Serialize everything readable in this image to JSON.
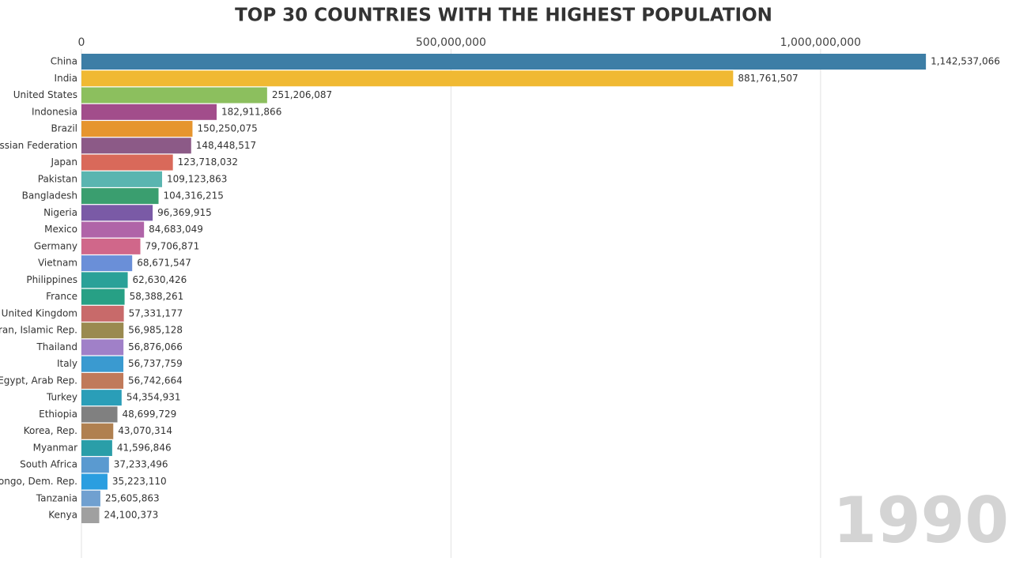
{
  "chart_data": {
    "type": "bar",
    "orientation": "horizontal",
    "title": "TOP 30 COUNTRIES WITH THE HIGHEST POPULATION",
    "year": "1990",
    "categories": [
      "China",
      "India",
      "United States",
      "Indonesia",
      "Brazil",
      "Russian Federation",
      "Japan",
      "Pakistan",
      "Bangladesh",
      "Nigeria",
      "Mexico",
      "Germany",
      "Vietnam",
      "Philippines",
      "France",
      "United Kingdom",
      "Iran, Islamic Rep.",
      "Thailand",
      "Italy",
      "Egypt, Arab Rep.",
      "Turkey",
      "Ethiopia",
      "Korea, Rep.",
      "Myanmar",
      "South Africa",
      "Congo, Dem. Rep.",
      "Tanzania",
      "Kenya"
    ],
    "values": [
      1142537066,
      881761507,
      251206087,
      182911866,
      150250075,
      148448517,
      123718032,
      109123863,
      104316215,
      96369915,
      84683049,
      79706871,
      68671547,
      62630426,
      58388261,
      57331177,
      56985128,
      56876066,
      56737759,
      56742664,
      54354931,
      48699729,
      43070314,
      41596846,
      37233496,
      35223110,
      25605863,
      24100373
    ],
    "value_labels": [
      "1,142,537,066",
      "881,761,507",
      "251,206,087",
      "182,911,866",
      "150,250,075",
      "148,448,517",
      "123,718,032",
      "109,123,863",
      "104,316,215",
      "96,369,915",
      "84,683,049",
      "79,706,871",
      "68,671,547",
      "62,630,426",
      "58,388,261",
      "57,331,177",
      "56,985,128",
      "56,876,066",
      "56,737,759",
      "56,742,664",
      "54,354,931",
      "48,699,729",
      "43,070,314",
      "41,596,846",
      "37,233,496",
      "35,223,110",
      "25,605,863",
      "24,100,373"
    ],
    "colors": [
      "#3d7ea6",
      "#f0b933",
      "#8cbf5e",
      "#a24d8b",
      "#e6952e",
      "#8c5a87",
      "#d9695a",
      "#5ab5b0",
      "#3a9e6f",
      "#7a5aa6",
      "#b064a8",
      "#d0678a",
      "#6a8fd8",
      "#2aa198",
      "#27a085",
      "#c86a6a",
      "#9a8a50",
      "#a080c8",
      "#3a9ad0",
      "#c07a5a",
      "#2a9eb8",
      "#808080",
      "#b08050",
      "#2a9ea8",
      "#5a9ad0",
      "#2a9ee0",
      "#70a0d0",
      "#a0a0a0"
    ],
    "xlim": [
      0,
      1259000000
    ],
    "xticks": [
      0,
      {
        "value": 500000000,
        "label": "500,000,000"
      },
      {
        "value": 1000000000,
        "label": "1,000,000,000"
      }
    ],
    "grid": true
  }
}
